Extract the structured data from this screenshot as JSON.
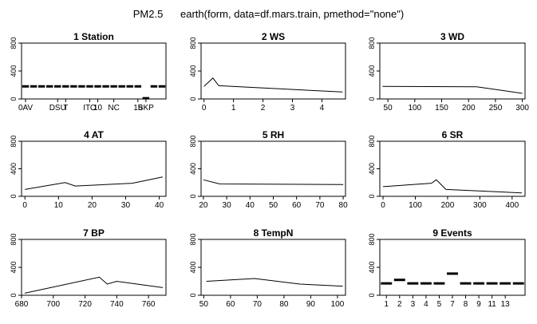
{
  "figure": {
    "title": "PM2.5      earth(form, data=df.mars.train, pmethod=\"none\")"
  },
  "chart_data": [
    {
      "type": "step",
      "title": "1  Station",
      "ylim": [
        0,
        800
      ],
      "yticks": [
        0,
        400,
        800
      ],
      "xlim": [
        0.5,
        18.5
      ],
      "xticks": [
        {
          "x": 1,
          "label": "0AV"
        },
        {
          "x": 5,
          "label": "DSU"
        },
        {
          "x": 6,
          "label": "T"
        },
        {
          "x": 9,
          "label": "ITO"
        },
        {
          "x": 10,
          "label": "10"
        },
        {
          "x": 12,
          "label": "NC"
        },
        {
          "x": 15,
          "label": "15"
        },
        {
          "x": 16,
          "label": "BKP"
        }
      ],
      "segments": [
        {
          "x": 1,
          "y": 180
        },
        {
          "x": 2,
          "y": 180
        },
        {
          "x": 3,
          "y": 180
        },
        {
          "x": 4,
          "y": 180
        },
        {
          "x": 5,
          "y": 180
        },
        {
          "x": 6,
          "y": 180
        },
        {
          "x": 7,
          "y": 180
        },
        {
          "x": 8,
          "y": 180
        },
        {
          "x": 9,
          "y": 180
        },
        {
          "x": 10,
          "y": 180
        },
        {
          "x": 11,
          "y": 180
        },
        {
          "x": 12,
          "y": 180
        },
        {
          "x": 13,
          "y": 180
        },
        {
          "x": 14,
          "y": 180
        },
        {
          "x": 15,
          "y": 180
        },
        {
          "x": 16,
          "y": 10
        },
        {
          "x": 17,
          "y": 180
        },
        {
          "x": 18,
          "y": 180
        }
      ]
    },
    {
      "type": "line",
      "title": "2  WS",
      "ylim": [
        0,
        800
      ],
      "yticks": [
        0,
        400,
        800
      ],
      "xlim": [
        -0.1,
        4.8
      ],
      "xticks": [
        0,
        1,
        2,
        3,
        4
      ],
      "x": [
        0.0,
        0.3,
        0.5,
        4.7
      ],
      "y": [
        180,
        300,
        190,
        100
      ]
    },
    {
      "type": "line",
      "title": "3  WD",
      "ylim": [
        0,
        800
      ],
      "yticks": [
        0,
        400,
        800
      ],
      "xlim": [
        35,
        305
      ],
      "xticks": [
        50,
        100,
        150,
        200,
        250,
        300
      ],
      "x": [
        40,
        215,
        300
      ],
      "y": [
        180,
        175,
        80
      ]
    },
    {
      "type": "line",
      "title": "4  AT",
      "ylim": [
        0,
        800
      ],
      "yticks": [
        0,
        400,
        800
      ],
      "xlim": [
        -1,
        42
      ],
      "xticks": [
        0,
        10,
        20,
        30,
        40
      ],
      "x": [
        0,
        12,
        15,
        32,
        41
      ],
      "y": [
        100,
        200,
        150,
        190,
        280
      ]
    },
    {
      "type": "line",
      "title": "5  RH",
      "ylim": [
        0,
        800
      ],
      "yticks": [
        0,
        400,
        800
      ],
      "xlim": [
        19,
        81
      ],
      "xticks": [
        20,
        30,
        40,
        50,
        60,
        70,
        80
      ],
      "x": [
        20,
        27,
        80
      ],
      "y": [
        240,
        180,
        170
      ]
    },
    {
      "type": "line",
      "title": "6  SR",
      "ylim": [
        0,
        800
      ],
      "yticks": [
        0,
        400,
        800
      ],
      "xlim": [
        -10,
        440
      ],
      "xticks": [
        0,
        100,
        200,
        300,
        400
      ],
      "x": [
        0,
        150,
        165,
        195,
        430
      ],
      "y": [
        140,
        190,
        240,
        100,
        50
      ]
    },
    {
      "type": "line",
      "title": "7  BP",
      "ylim": [
        0,
        800
      ],
      "yticks": [
        0,
        400,
        800
      ],
      "xlim": [
        680,
        771
      ],
      "xticks": [
        680,
        700,
        720,
        740,
        760
      ],
      "x": [
        682,
        729,
        734,
        740,
        769
      ],
      "y": [
        30,
        260,
        160,
        200,
        110
      ]
    },
    {
      "type": "line",
      "title": "8  TempN",
      "ylim": [
        0,
        800
      ],
      "yticks": [
        0,
        400,
        800
      ],
      "xlim": [
        49,
        103
      ],
      "xticks": [
        50,
        60,
        70,
        80,
        90,
        100
      ],
      "x": [
        51,
        69,
        86,
        102
      ],
      "y": [
        200,
        240,
        160,
        130
      ]
    },
    {
      "type": "step",
      "title": "9  Events",
      "ylim": [
        0,
        800
      ],
      "yticks": [
        0,
        400,
        800
      ],
      "xlim": [
        0.5,
        11.5
      ],
      "xticks": [
        {
          "x": 1,
          "label": "1"
        },
        {
          "x": 2,
          "label": "2"
        },
        {
          "x": 3,
          "label": "3"
        },
        {
          "x": 4,
          "label": "4"
        },
        {
          "x": 5,
          "label": "5"
        },
        {
          "x": 6,
          "label": "7"
        },
        {
          "x": 7,
          "label": "8"
        },
        {
          "x": 8,
          "label": "9"
        },
        {
          "x": 9,
          "label": "11"
        },
        {
          "x": 10,
          "label": "13"
        }
      ],
      "segments": [
        {
          "x": 1,
          "y": 170
        },
        {
          "x": 2,
          "y": 220
        },
        {
          "x": 3,
          "y": 170
        },
        {
          "x": 4,
          "y": 170
        },
        {
          "x": 5,
          "y": 170
        },
        {
          "x": 6,
          "y": 310
        },
        {
          "x": 7,
          "y": 170
        },
        {
          "x": 8,
          "y": 170
        },
        {
          "x": 9,
          "y": 170
        },
        {
          "x": 10,
          "y": 170
        },
        {
          "x": 11,
          "y": 170
        }
      ]
    }
  ]
}
